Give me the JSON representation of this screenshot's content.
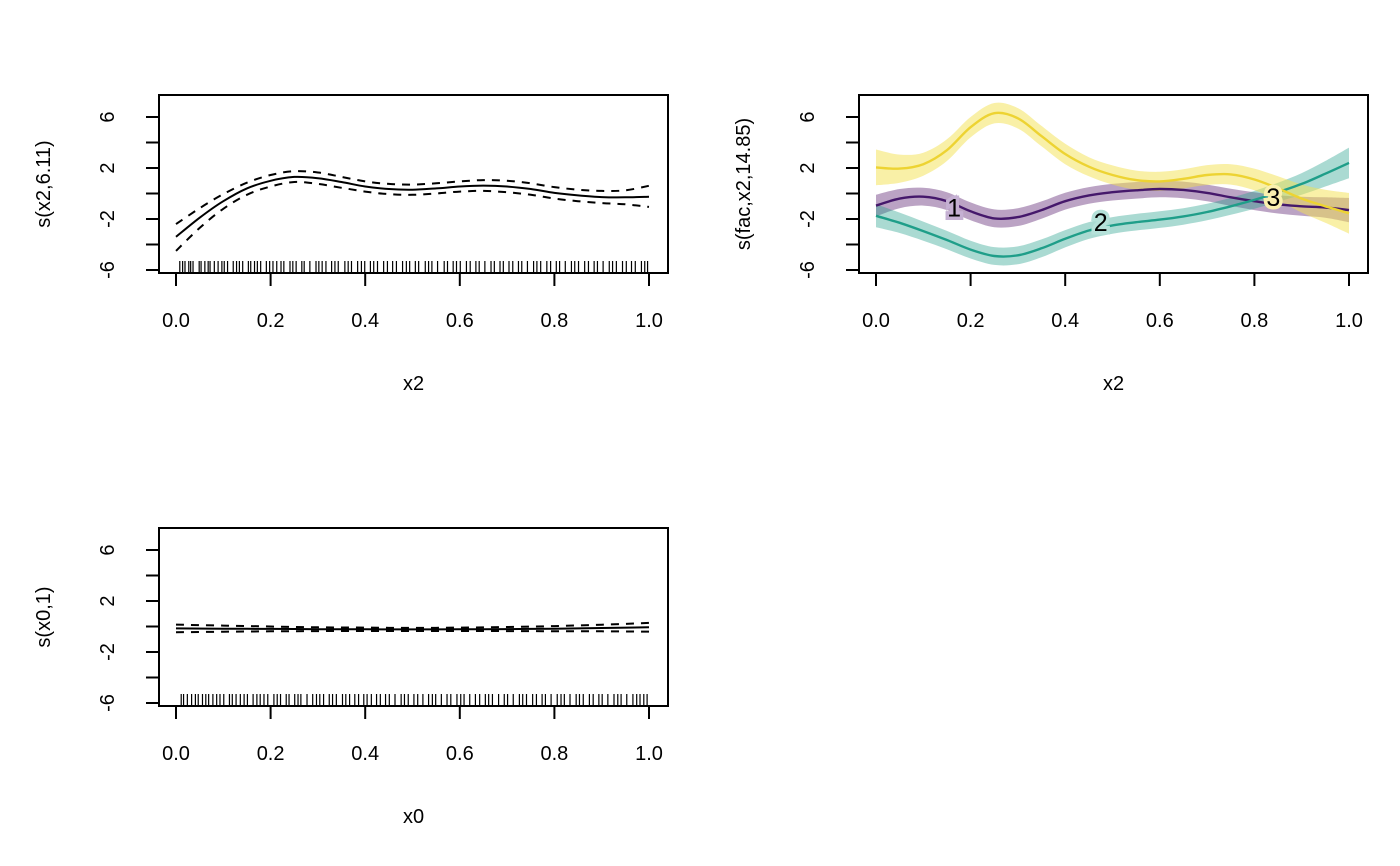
{
  "figure": {
    "background": "#ffffff",
    "description": "GAM smooth term plots (2x2 layout, bottom-right empty)"
  },
  "chart_data": [
    {
      "id": "top-left",
      "type": "line",
      "title": "",
      "xlabel": "x2",
      "ylabel": "s(x2,6.11)",
      "xlim": [
        0,
        1
      ],
      "ylim": [
        -6.6,
        7.7
      ],
      "grid": false,
      "legend": "none",
      "x_ticks": {
        "values": [
          0,
          0.2,
          0.4,
          0.6,
          0.8,
          1
        ],
        "labels": [
          "0.0",
          "0.2",
          "0.4",
          "0.6",
          "0.8",
          "1.0"
        ]
      },
      "y_ticks": {
        "values": [
          -6,
          -4,
          -2,
          0,
          2,
          4,
          6
        ],
        "labels": [
          "-6",
          "",
          "-2",
          "",
          "2",
          "",
          "6"
        ]
      },
      "x": [
        0,
        0.05,
        0.1,
        0.15,
        0.2,
        0.25,
        0.3,
        0.35,
        0.4,
        0.45,
        0.5,
        0.55,
        0.6,
        0.65,
        0.7,
        0.75,
        0.8,
        0.85,
        0.9,
        0.95,
        1
      ],
      "series": [
        {
          "name": "fit",
          "color": "#000000",
          "dash": "none",
          "width": 2,
          "y": [
            -3.4,
            -1.9,
            -0.6,
            0.4,
            1.0,
            1.3,
            1.2,
            0.9,
            0.55,
            0.35,
            0.3,
            0.4,
            0.55,
            0.62,
            0.55,
            0.35,
            0.05,
            -0.15,
            -0.28,
            -0.3,
            -0.25
          ]
        },
        {
          "name": "upper-ci",
          "color": "#000000",
          "dash": "8 7",
          "width": 2,
          "y": [
            -2.4,
            -1.15,
            -0.05,
            0.85,
            1.45,
            1.75,
            1.65,
            1.3,
            0.95,
            0.75,
            0.7,
            0.8,
            0.95,
            1.05,
            1.0,
            0.8,
            0.5,
            0.3,
            0.2,
            0.25,
            0.6
          ]
        },
        {
          "name": "lower-ci",
          "color": "#000000",
          "dash": "8 7",
          "width": 2,
          "y": [
            -4.5,
            -2.7,
            -1.2,
            -0.1,
            0.55,
            0.9,
            0.75,
            0.45,
            0.15,
            -0.05,
            -0.1,
            0.0,
            0.15,
            0.2,
            0.1,
            -0.1,
            -0.4,
            -0.6,
            -0.75,
            -0.85,
            -1.05
          ]
        }
      ],
      "rug": [
        0.008,
        0.014,
        0.019,
        0.027,
        0.031,
        0.036,
        0.049,
        0.053,
        0.061,
        0.068,
        0.072,
        0.081,
        0.089,
        0.097,
        0.102,
        0.109,
        0.121,
        0.128,
        0.134,
        0.141,
        0.153,
        0.158,
        0.166,
        0.172,
        0.179,
        0.191,
        0.198,
        0.205,
        0.213,
        0.222,
        0.228,
        0.241,
        0.247,
        0.254,
        0.266,
        0.271,
        0.283,
        0.296,
        0.302,
        0.309,
        0.317,
        0.329,
        0.336,
        0.343,
        0.357,
        0.364,
        0.371,
        0.384,
        0.392,
        0.399,
        0.411,
        0.418,
        0.426,
        0.439,
        0.447,
        0.458,
        0.466,
        0.479,
        0.487,
        0.494,
        0.506,
        0.513,
        0.527,
        0.534,
        0.541,
        0.553,
        0.567,
        0.574,
        0.586,
        0.593,
        0.601,
        0.614,
        0.622,
        0.634,
        0.641,
        0.653,
        0.666,
        0.673,
        0.685,
        0.692,
        0.704,
        0.712,
        0.724,
        0.731,
        0.743,
        0.756,
        0.763,
        0.771,
        0.784,
        0.792,
        0.804,
        0.811,
        0.823,
        0.836,
        0.843,
        0.851,
        0.864,
        0.872,
        0.884,
        0.891,
        0.903,
        0.916,
        0.923,
        0.931,
        0.944,
        0.952,
        0.963,
        0.971,
        0.984,
        0.991,
        0.997
      ]
    },
    {
      "id": "top-right",
      "type": "line",
      "title": "",
      "xlabel": "x2",
      "ylabel": "s(fac,x2,14.85)",
      "xlim": [
        0,
        1
      ],
      "ylim": [
        -6.6,
        7.7
      ],
      "grid": false,
      "legend": "curve-labels",
      "x_ticks": {
        "values": [
          0,
          0.2,
          0.4,
          0.6,
          0.8,
          1
        ],
        "labels": [
          "0.0",
          "0.2",
          "0.4",
          "0.6",
          "0.8",
          "1.0"
        ]
      },
      "y_ticks": {
        "values": [
          -6,
          -4,
          -2,
          0,
          2,
          4,
          6
        ],
        "labels": [
          "-6",
          "",
          "-2",
          "",
          "2",
          "",
          "6"
        ]
      },
      "x": [
        0,
        0.05,
        0.1,
        0.15,
        0.2,
        0.25,
        0.3,
        0.35,
        0.4,
        0.45,
        0.5,
        0.55,
        0.6,
        0.65,
        0.7,
        0.75,
        0.8,
        0.85,
        0.9,
        0.95,
        1
      ],
      "groups": [
        {
          "name": "level-1",
          "label": "1",
          "line_color": "#45186b",
          "band_color": "rgba(105,50,125,0.45)",
          "halo_color": "#c5b0d3",
          "label_x": 0.165,
          "label_y": -1.1,
          "fit": [
            -0.95,
            -0.4,
            -0.25,
            -0.6,
            -1.4,
            -1.95,
            -1.85,
            -1.3,
            -0.6,
            -0.15,
            0.1,
            0.25,
            0.35,
            0.28,
            0.05,
            -0.3,
            -0.6,
            -0.85,
            -1.0,
            -1.1,
            -1.3
          ],
          "half": [
            0.85,
            0.75,
            0.7,
            0.7,
            0.7,
            0.7,
            0.7,
            0.68,
            0.66,
            0.65,
            0.65,
            0.65,
            0.65,
            0.65,
            0.65,
            0.67,
            0.7,
            0.72,
            0.75,
            0.8,
            0.95
          ]
        },
        {
          "name": "level-2",
          "label": "2",
          "line_color": "#1f9e89",
          "band_color": "rgba(31,158,137,0.38)",
          "halo_color": "#b5e1d9",
          "label_x": 0.475,
          "label_y": -2.25,
          "fit": [
            -1.75,
            -2.3,
            -2.95,
            -3.65,
            -4.4,
            -4.9,
            -4.85,
            -4.3,
            -3.55,
            -2.9,
            -2.5,
            -2.25,
            -2.05,
            -1.8,
            -1.45,
            -1.0,
            -0.5,
            0.1,
            0.75,
            1.55,
            2.4
          ],
          "half": [
            0.9,
            0.8,
            0.75,
            0.72,
            0.7,
            0.7,
            0.7,
            0.7,
            0.68,
            0.66,
            0.65,
            0.65,
            0.65,
            0.65,
            0.65,
            0.67,
            0.7,
            0.75,
            0.85,
            1.0,
            1.2
          ]
        },
        {
          "name": "level-3",
          "label": "3",
          "line_color": "#edd332",
          "band_color": "rgba(244,225,79,0.5)",
          "halo_color": "#faf0ae",
          "label_x": 0.84,
          "label_y": -0.3,
          "fit": [
            2.05,
            1.95,
            2.3,
            3.4,
            5.2,
            6.3,
            5.9,
            4.5,
            3.1,
            2.1,
            1.45,
            1.05,
            0.95,
            1.15,
            1.45,
            1.5,
            1.1,
            0.4,
            -0.4,
            -1.0,
            -1.55
          ],
          "half": [
            1.4,
            1.1,
            0.9,
            0.85,
            0.8,
            0.8,
            0.8,
            0.8,
            0.8,
            0.75,
            0.75,
            0.75,
            0.75,
            0.75,
            0.78,
            0.8,
            0.85,
            0.95,
            1.1,
            1.3,
            1.6
          ]
        }
      ],
      "rug": []
    },
    {
      "id": "bottom-left",
      "type": "line",
      "title": "",
      "xlabel": "x0",
      "ylabel": "s(x0,1)",
      "xlim": [
        0,
        1
      ],
      "ylim": [
        -6.6,
        7.7
      ],
      "grid": false,
      "legend": "none",
      "x_ticks": {
        "values": [
          0,
          0.2,
          0.4,
          0.6,
          0.8,
          1
        ],
        "labels": [
          "0.0",
          "0.2",
          "0.4",
          "0.6",
          "0.8",
          "1.0"
        ]
      },
      "y_ticks": {
        "values": [
          -6,
          -4,
          -2,
          0,
          2,
          4,
          6
        ],
        "labels": [
          "-6",
          "",
          "-2",
          "",
          "2",
          "",
          "6"
        ]
      },
      "x": [
        0,
        0.1,
        0.2,
        0.3,
        0.4,
        0.5,
        0.6,
        0.7,
        0.8,
        0.9,
        1
      ],
      "series": [
        {
          "name": "fit",
          "color": "#000000",
          "dash": "none",
          "width": 2,
          "y": [
            -0.15,
            -0.17,
            -0.19,
            -0.21,
            -0.22,
            -0.23,
            -0.22,
            -0.2,
            -0.17,
            -0.12,
            -0.06
          ]
        },
        {
          "name": "upper-ci",
          "color": "#000000",
          "dash": "8 7",
          "width": 2,
          "y": [
            0.15,
            0.07,
            0.0,
            -0.06,
            -0.09,
            -0.11,
            -0.09,
            -0.04,
            0.03,
            0.14,
            0.28
          ]
        },
        {
          "name": "lower-ci",
          "color": "#000000",
          "dash": "8 7",
          "width": 2,
          "y": [
            -0.45,
            -0.41,
            -0.38,
            -0.36,
            -0.35,
            -0.35,
            -0.35,
            -0.36,
            -0.37,
            -0.38,
            -0.4
          ]
        }
      ],
      "rug": [
        0.011,
        0.016,
        0.024,
        0.033,
        0.041,
        0.047,
        0.056,
        0.063,
        0.069,
        0.078,
        0.086,
        0.093,
        0.101,
        0.113,
        0.119,
        0.127,
        0.136,
        0.144,
        0.151,
        0.163,
        0.171,
        0.178,
        0.186,
        0.194,
        0.207,
        0.214,
        0.221,
        0.233,
        0.239,
        0.251,
        0.258,
        0.264,
        0.277,
        0.289,
        0.297,
        0.304,
        0.312,
        0.324,
        0.331,
        0.339,
        0.352,
        0.359,
        0.367,
        0.378,
        0.386,
        0.397,
        0.404,
        0.413,
        0.424,
        0.432,
        0.443,
        0.451,
        0.463,
        0.476,
        0.483,
        0.491,
        0.503,
        0.511,
        0.522,
        0.534,
        0.542,
        0.549,
        0.561,
        0.573,
        0.581,
        0.594,
        0.602,
        0.609,
        0.621,
        0.633,
        0.642,
        0.654,
        0.661,
        0.669,
        0.682,
        0.694,
        0.701,
        0.713,
        0.726,
        0.733,
        0.741,
        0.754,
        0.762,
        0.774,
        0.781,
        0.793,
        0.806,
        0.814,
        0.821,
        0.833,
        0.846,
        0.853,
        0.861,
        0.874,
        0.882,
        0.894,
        0.901,
        0.913,
        0.926,
        0.934,
        0.941,
        0.953,
        0.966,
        0.974,
        0.981,
        0.989,
        0.996
      ]
    }
  ]
}
